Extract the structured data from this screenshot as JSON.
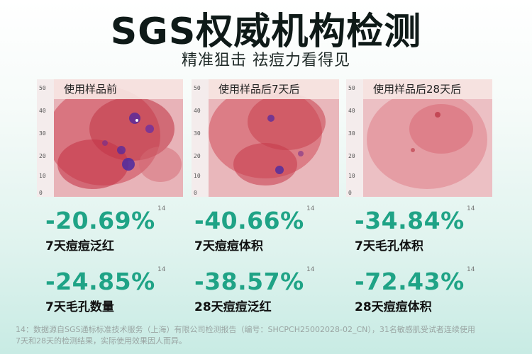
{
  "header": {
    "title": "SGS权威机构检测",
    "subtitle": "精准狙击 祛痘力看得见"
  },
  "panels": [
    {
      "caption": "使用样品前"
    },
    {
      "caption": "使用样品后7天后"
    },
    {
      "caption": "使用样品后28天后"
    }
  ],
  "ruler_ticks": [
    "50",
    "40",
    "30",
    "20",
    "10",
    "0"
  ],
  "stats": [
    {
      "value": "-20.69%",
      "sup": "14",
      "label": "7天痘痘泛红"
    },
    {
      "value": "-40.66%",
      "sup": "14",
      "label": "7天痘痘体积"
    },
    {
      "value": "-34.84%",
      "sup": "14",
      "label": "7天毛孔体积"
    },
    {
      "value": "-24.85%",
      "sup": "14",
      "label": "7天毛孔数量"
    },
    {
      "value": "-38.57%",
      "sup": "14",
      "label": "28天痘痘泛红"
    },
    {
      "value": "-72.43%",
      "sup": "14",
      "label": "28天痘痘体积"
    }
  ],
  "footnote": {
    "line1": "14：数据源自SGS通标标准技术服务（上海）有限公司检测报告（编号：SHCPCH25002028-02_CN），31名敏感肌受试者连续使用",
    "line2": "7天和28天的检测结果，实际使用效果因人而异。"
  },
  "colors": {
    "accent": "#1fa386",
    "skin": "#e7bcc0"
  }
}
